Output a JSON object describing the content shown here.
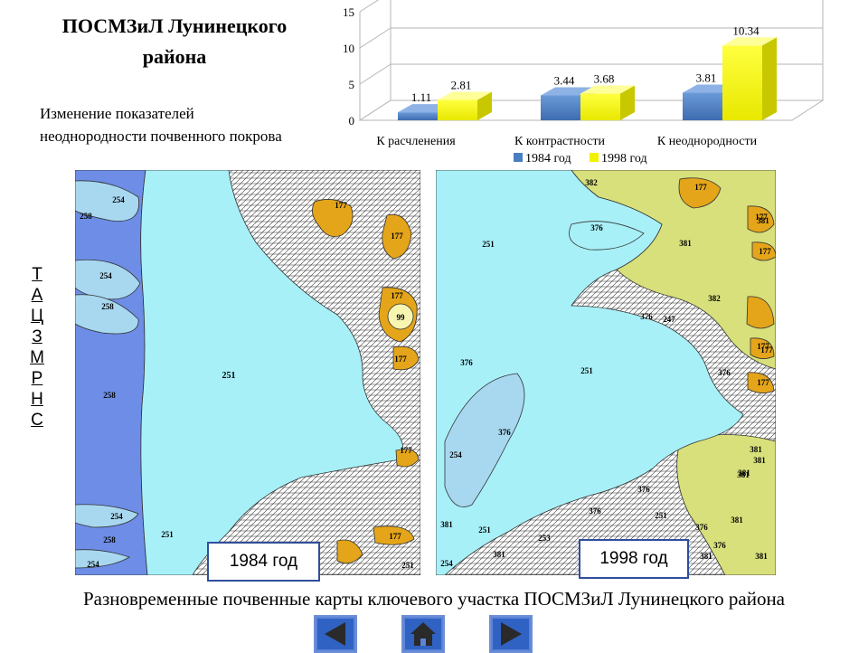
{
  "slide": {
    "title_line1": "ПОСМЗиЛ Лунинецкого",
    "title_line2": "района",
    "subtitle_line1": "Изменение показателей",
    "subtitle_line2": "неоднородности почвенного покрова",
    "caption": "Разновременные почвенные карты ключевого участка ПОСМЗиЛ Лунинецкого района"
  },
  "side_links": [
    "Т",
    "А",
    "Ц",
    "З",
    "М",
    "Р",
    "Н",
    "С"
  ],
  "maps": {
    "left_label": "1984 год",
    "right_label": "1998 год",
    "left_codes": [
      "254",
      "258",
      "254",
      "258",
      "258",
      "254",
      "258",
      "254",
      "251",
      "251",
      "375",
      "177",
      "177",
      "177",
      "99",
      "177",
      "177",
      "177",
      "251"
    ],
    "right_codes": [
      "382",
      "177",
      "177",
      "177",
      "381",
      "376",
      "251",
      "381",
      "382",
      "376",
      "247",
      "177",
      "376",
      "376",
      "251",
      "177",
      "376",
      "177",
      "254",
      "381",
      "381",
      "376",
      "381",
      "381",
      "376",
      "251",
      "251",
      "381",
      "376",
      "253",
      "381",
      "376",
      "381",
      "254",
      "381",
      "381"
    ]
  },
  "colors": {
    "series_1984": "#4a7ec4",
    "series_1998": "#f2f200",
    "water_light": "#a8f0f8",
    "blue_zone": "#6d8de6",
    "olive_zone": "#d7e07a",
    "orange_zone": "#e4a51a",
    "nav_button": "#2f62c3"
  },
  "nav": {
    "prev_icon": "arrow-left-icon",
    "home_icon": "home-icon",
    "next_icon": "arrow-right-icon"
  },
  "chart_data": {
    "type": "bar",
    "categories": [
      "К расчленения",
      "К контрастности",
      "К неоднородности"
    ],
    "series": [
      {
        "name": "1984 год",
        "values": [
          1.11,
          3.44,
          3.81
        ]
      },
      {
        "name": "1998 год",
        "values": [
          2.81,
          3.68,
          10.34
        ]
      }
    ],
    "data_labels": [
      [
        "1.11",
        "3.44",
        "3.81"
      ],
      [
        "2.81",
        "3.68",
        "10.34"
      ]
    ],
    "yticks": [
      0,
      5,
      10,
      15
    ],
    "ylim": [
      0,
      15
    ],
    "grid": true,
    "legend": "bottom",
    "title": "",
    "xlabel": "",
    "ylabel": ""
  }
}
